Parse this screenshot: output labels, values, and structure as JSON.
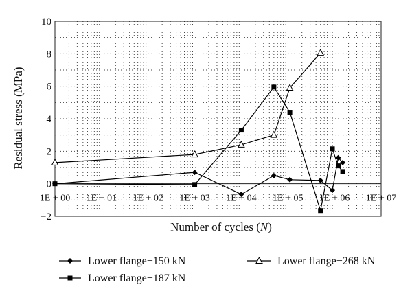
{
  "chart_data": {
    "type": "line",
    "xlabel": "Number of cycles (N)",
    "xlabel_main": "Number of cycles (",
    "xlabel_var": "N",
    "xlabel_end": ")",
    "ylabel": "Residual stress (MPa)",
    "x_scale": "log",
    "xlim": [
      1,
      10000000
    ],
    "ylim": [
      -2,
      10
    ],
    "grid": "dotted",
    "legend_position": "bottom",
    "x_ticks": [
      {
        "value": 1,
        "label": "1E + 00"
      },
      {
        "value": 10,
        "label": "1E + 01"
      },
      {
        "value": 100,
        "label": "1E + 02"
      },
      {
        "value": 1000,
        "label": "1E + 03"
      },
      {
        "value": 10000,
        "label": "1E + 04"
      },
      {
        "value": 100000,
        "label": "1E + 05"
      },
      {
        "value": 1000000,
        "label": "1E + 06"
      },
      {
        "value": 10000000,
        "label": "1E + 07"
      }
    ],
    "y_ticks": [
      {
        "value": -2,
        "label": "−2"
      },
      {
        "value": 0,
        "label": "0"
      },
      {
        "value": 2,
        "label": "2"
      },
      {
        "value": 4,
        "label": "4"
      },
      {
        "value": 6,
        "label": "6"
      },
      {
        "value": 8,
        "label": "8"
      },
      {
        "value": 10,
        "label": "10"
      }
    ],
    "series": [
      {
        "name": "Lower flange−150 kN",
        "marker": "diamond",
        "points": [
          {
            "x": 1,
            "y": 0
          },
          {
            "x": 1000,
            "y": 0.7
          },
          {
            "x": 10000,
            "y": -0.65
          },
          {
            "x": 50000,
            "y": 0.5
          },
          {
            "x": 110000,
            "y": 0.25
          },
          {
            "x": 500000,
            "y": 0.2
          },
          {
            "x": 900000,
            "y": -0.4
          },
          {
            "x": 1200000,
            "y": 1.6
          },
          {
            "x": 1500000,
            "y": 1.3
          }
        ]
      },
      {
        "name": "Lower flange−187 kN",
        "marker": "square",
        "points": [
          {
            "x": 1,
            "y": 0
          },
          {
            "x": 1000,
            "y": -0.05
          },
          {
            "x": 10000,
            "y": 3.3
          },
          {
            "x": 50000,
            "y": 5.95
          },
          {
            "x": 110000,
            "y": 4.4
          },
          {
            "x": 500000,
            "y": -1.65
          },
          {
            "x": 900000,
            "y": 2.15
          },
          {
            "x": 1200000,
            "y": 1.1
          },
          {
            "x": 1500000,
            "y": 0.75
          }
        ]
      },
      {
        "name": "Lower flange−268 kN",
        "marker": "triangle",
        "points": [
          {
            "x": 1,
            "y": 1.3
          },
          {
            "x": 1000,
            "y": 1.8
          },
          {
            "x": 10000,
            "y": 2.4
          },
          {
            "x": 50000,
            "y": 3.0
          },
          {
            "x": 110000,
            "y": 5.9
          },
          {
            "x": 500000,
            "y": 8.05
          }
        ]
      }
    ]
  }
}
